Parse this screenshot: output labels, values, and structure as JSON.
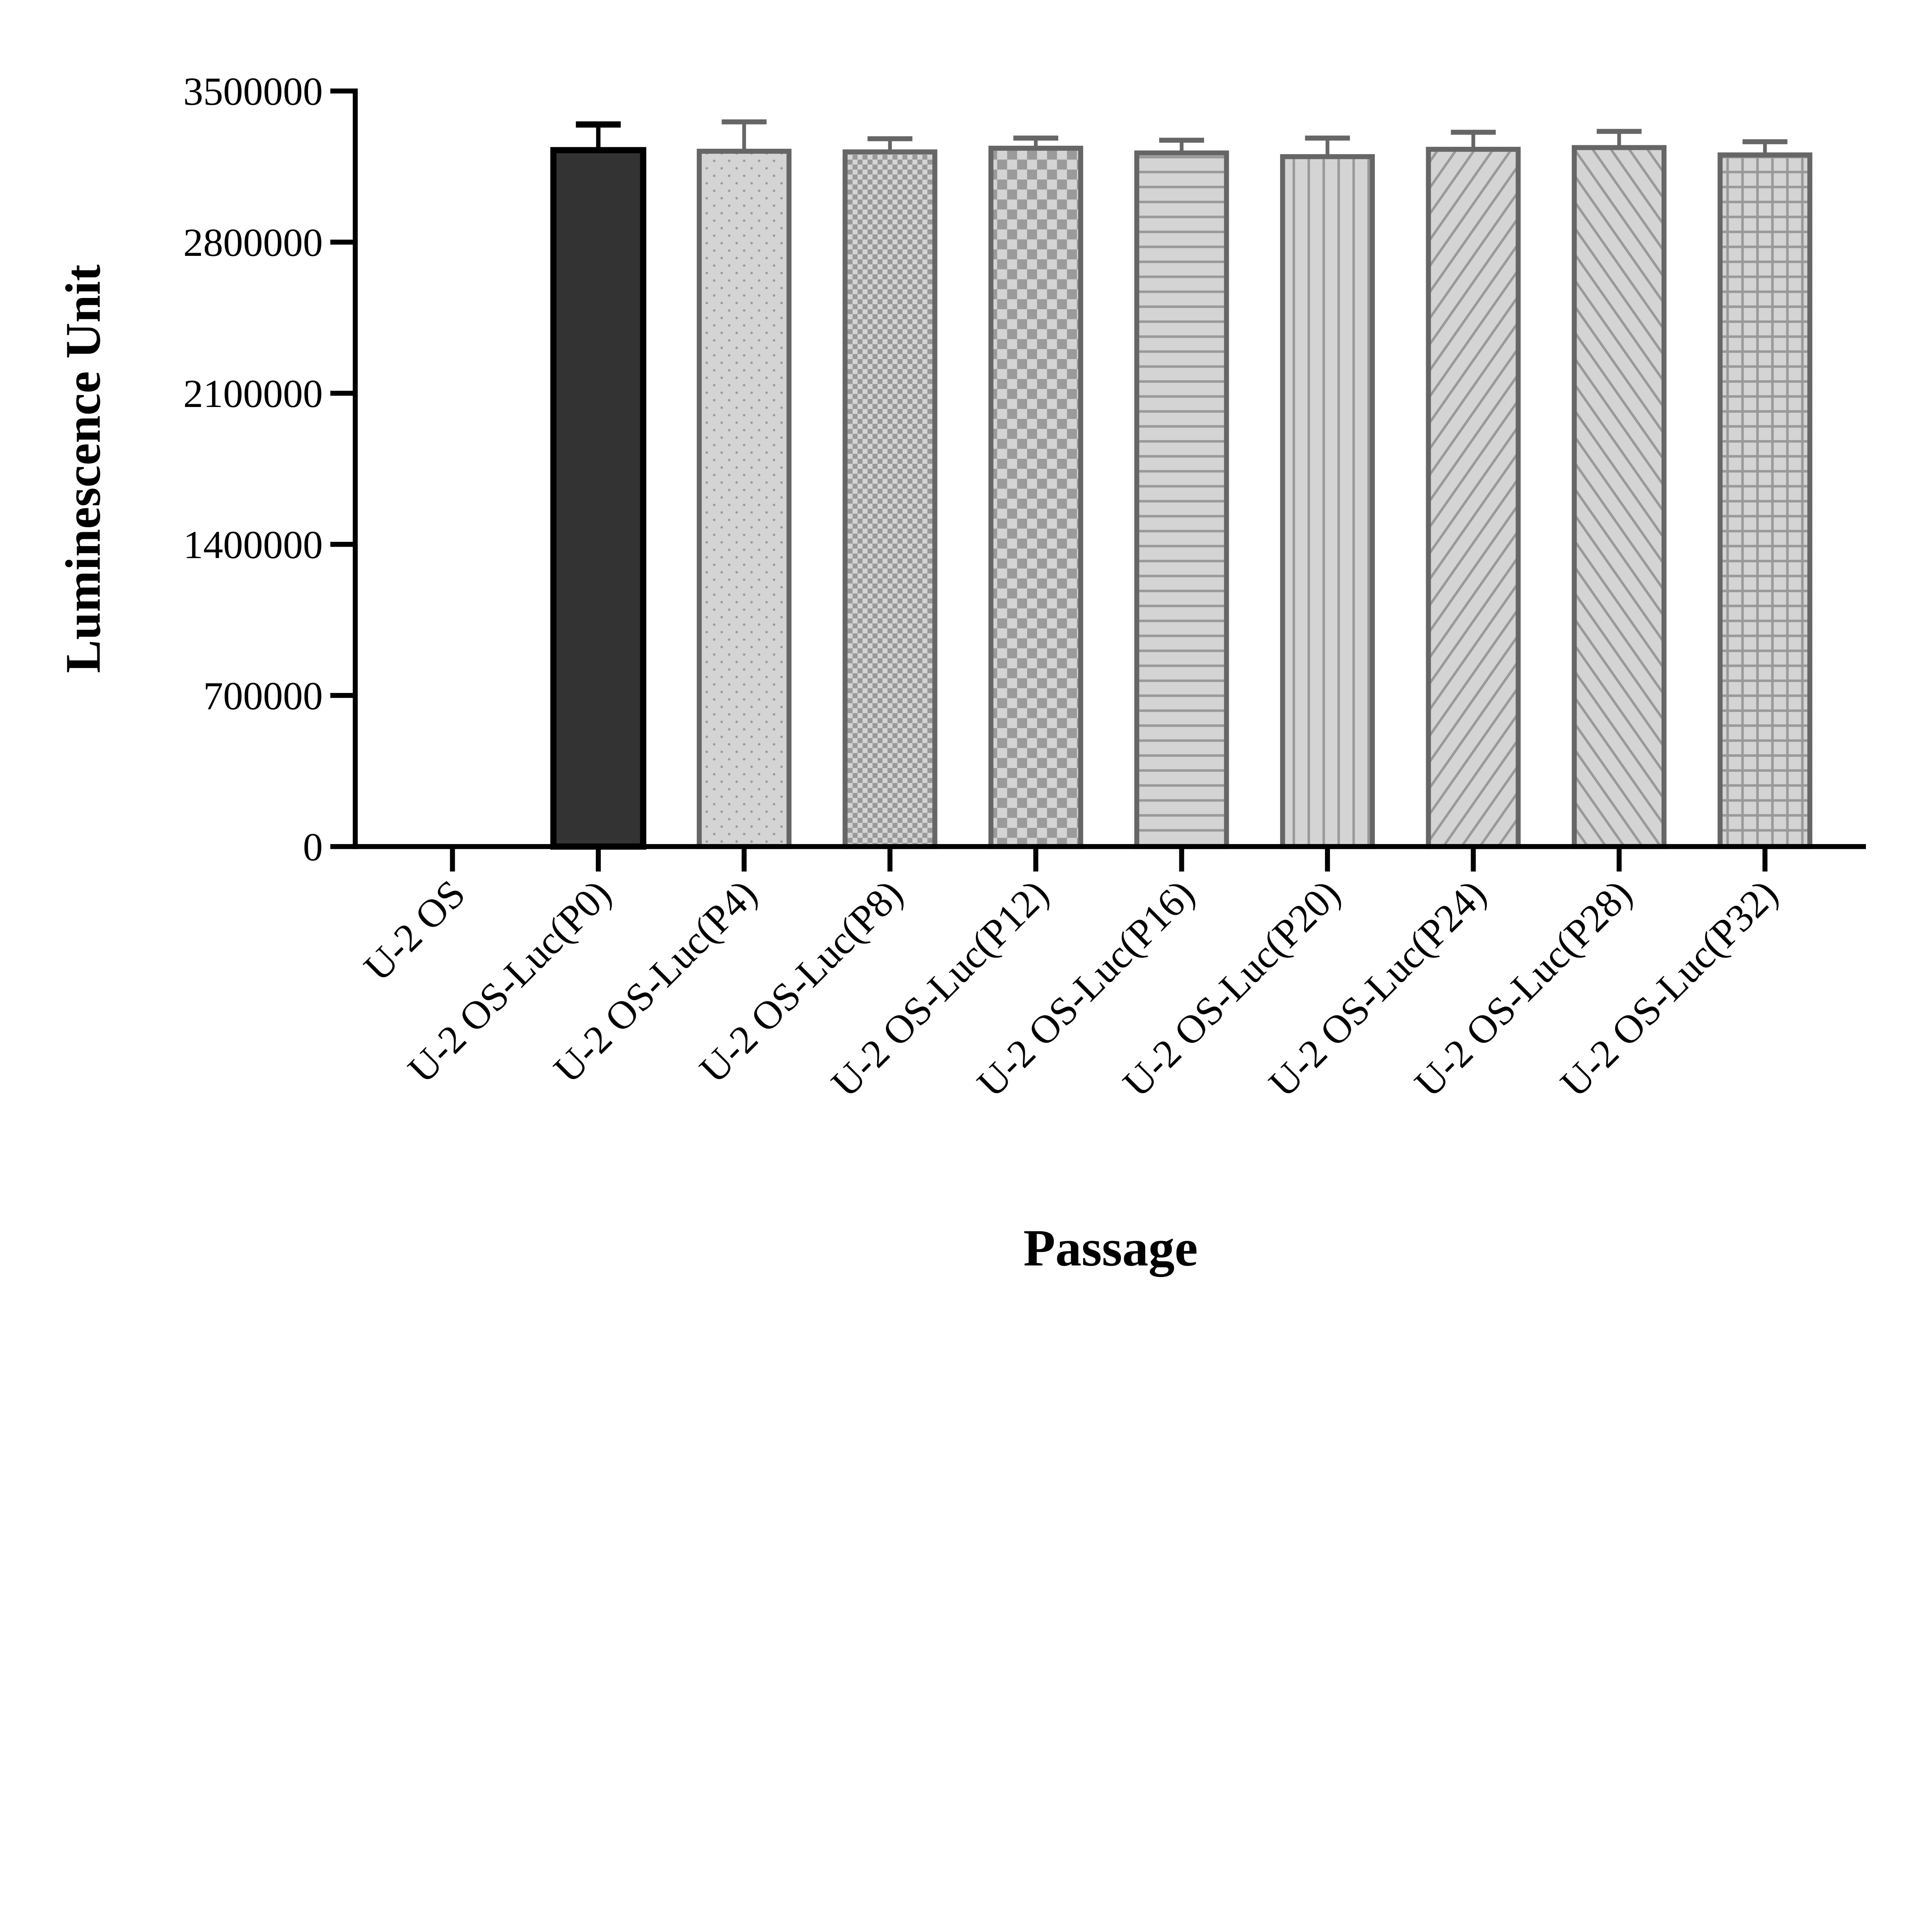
{
  "chart_data": {
    "type": "bar",
    "title": "",
    "xlabel": "Passage",
    "ylabel": "Luminescence Unit",
    "ylim": [
      0,
      3500000
    ],
    "yticks": [
      "0",
      "700000",
      "1400000",
      "2100000",
      "2800000",
      "3500000"
    ],
    "grid": false,
    "categories": [
      "U-2 OS",
      "U-2 OS-Luc(P0)",
      "U-2 OS-Luc(P4)",
      "U-2 OS-Luc(P8)",
      "U-2 OS-Luc(P12)",
      "U-2 OS-Luc(P16)",
      "U-2 OS-Luc(P20)",
      "U-2 OS-Luc(P24)",
      "U-2 OS-Luc(P28)",
      "U-2 OS-Luc(P32)"
    ],
    "values": [
      0,
      3226000,
      3221000,
      3218000,
      3235000,
      3213000,
      3196000,
      3230000,
      3238000,
      3204000
    ],
    "error_upper": [
      0,
      3345000,
      3357000,
      3279000,
      3282000,
      3272000,
      3282000,
      3309000,
      3313000,
      3265000
    ],
    "fill_patterns": [
      "none",
      "solid",
      "dots",
      "fine-checker",
      "checker",
      "horizontal-lines",
      "vertical-lines",
      "diagonal-forward",
      "diagonal-back",
      "grid"
    ],
    "colors": {
      "p0_fill": "#333333",
      "bar_fill": "#d4d4d4",
      "bar_stroke": "#666666",
      "pattern": "#999999",
      "axis": "#000000"
    }
  }
}
